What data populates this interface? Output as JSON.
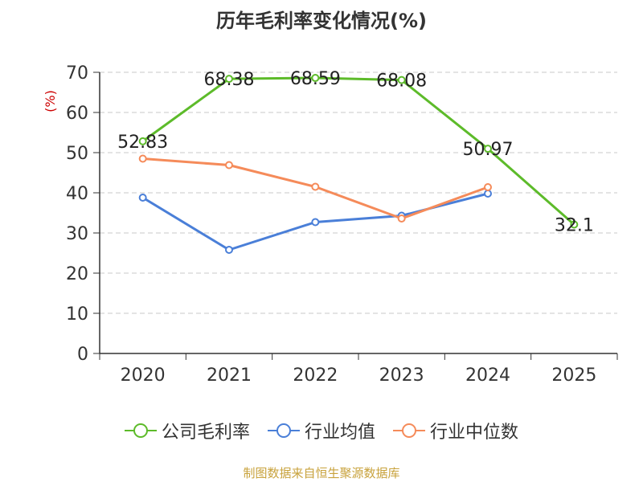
{
  "chart_data": {
    "type": "line",
    "title": "历年毛利率变化情况(%)",
    "ylabel": "(%)",
    "xlabel": "",
    "categories": [
      "2020",
      "2021",
      "2022",
      "2023",
      "2024",
      "2025"
    ],
    "ylim": [
      0,
      70
    ],
    "yticks": [
      0,
      10,
      20,
      30,
      40,
      50,
      60,
      70
    ],
    "grid": true,
    "series": [
      {
        "name": "公司毛利率",
        "color": "#5dbb2a",
        "values": [
          52.83,
          68.38,
          68.59,
          68.08,
          50.97,
          32.1
        ],
        "labels": [
          "52.83",
          "68.38",
          "68.59",
          "68.08",
          "50.97",
          "32.1"
        ]
      },
      {
        "name": "行业均值",
        "color": "#4a7fd8",
        "values": [
          38.8,
          25.8,
          32.7,
          34.3,
          39.8,
          null
        ]
      },
      {
        "name": "行业中位数",
        "color": "#f58b5a",
        "values": [
          48.5,
          46.9,
          41.5,
          33.6,
          41.4,
          null
        ]
      }
    ],
    "legend_position": "bottom"
  },
  "source": "制图数据来自恒生聚源数据库"
}
